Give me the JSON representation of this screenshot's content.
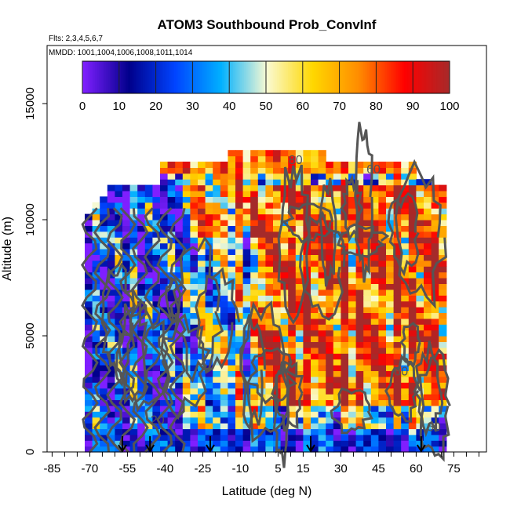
{
  "chart_data": {
    "type": "heatmap",
    "title": "ATOM3 Southbound Prob_ConvInf",
    "subtitle_flights": "Flts: 2,3,4,5,6,7",
    "subtitle_dates": "MMDD: 1001,1004,1006,1008,1011,1014",
    "xlabel": "Latitude (deg N)",
    "ylabel": "Altitude (m)",
    "xlim": [
      -87,
      88
    ],
    "ylim": [
      0,
      17500
    ],
    "x_ticks": [
      -85,
      -70,
      -55,
      -40,
      -25,
      -10,
      5,
      15,
      30,
      45,
      60,
      75
    ],
    "y_ticks": [
      0,
      5000,
      10000,
      15000
    ],
    "colorbar": {
      "range": [
        0,
        100
      ],
      "ticks": [
        0,
        10,
        20,
        30,
        40,
        50,
        60,
        70,
        80,
        90,
        100
      ],
      "colors": [
        "#7f1fff",
        "#00008b",
        "#0044ff",
        "#00b0ff",
        "#fafad2",
        "#ffd700",
        "#ff8c00",
        "#ff0000",
        "#a52a2a"
      ]
    },
    "contour_labels": [
      {
        "text": "80",
        "x": 12,
        "y": 12400
      },
      {
        "text": "60",
        "x": 43,
        "y": 12000
      },
      {
        "text": "60",
        "x": 54,
        "y": 3300
      },
      {
        "text": "60",
        "x": 67,
        "y": 900
      },
      {
        "text": "20",
        "x": -43,
        "y": 1200
      }
    ],
    "flight_markers_lat": [
      -57,
      -46,
      -22,
      18,
      62
    ],
    "field_summary": {
      "lat_range": [
        -72,
        72
      ],
      "altitude_top_band_m": [
        10000,
        12800
      ],
      "low_prob_region": "southern latitudes (-72 to -30) dominated by 0-40",
      "high_prob_region": "latitudes 0 to 70 between 5000 and 11000 m dominated by 80-100"
    }
  }
}
